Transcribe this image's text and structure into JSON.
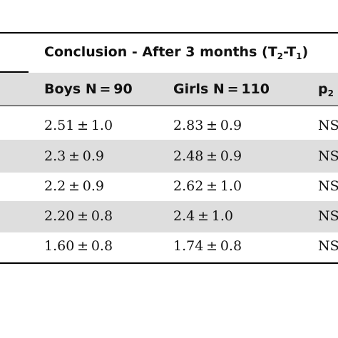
{
  "table": {
    "group_header": {
      "text": "Conclusion - After 3 months (T",
      "sub1": "2",
      "mid": "-T",
      "sub2": "1",
      "close": ")"
    },
    "columns": [
      {
        "label": "Boys N = 90"
      },
      {
        "label": "Girls N = 110"
      },
      {
        "label": "p",
        "sub": "2"
      }
    ],
    "rows": [
      {
        "boys": "2.51 ± 1.0",
        "girls": "2.83 ± 0.9",
        "p": "NS"
      },
      {
        "boys": "2.3 ± 0.9",
        "girls": "2.48 ± 0.9",
        "p": "NS"
      },
      {
        "boys": "2.2 ± 0.9",
        "girls": "2.62 ± 1.0",
        "p": "NS"
      },
      {
        "boys": "2.20 ± 0.8",
        "girls": "2.4 ± 1.0",
        "p": "NS"
      },
      {
        "boys": "1.60 ± 0.8",
        "girls": "1.74 ± 0.8",
        "p": "NS"
      }
    ]
  }
}
